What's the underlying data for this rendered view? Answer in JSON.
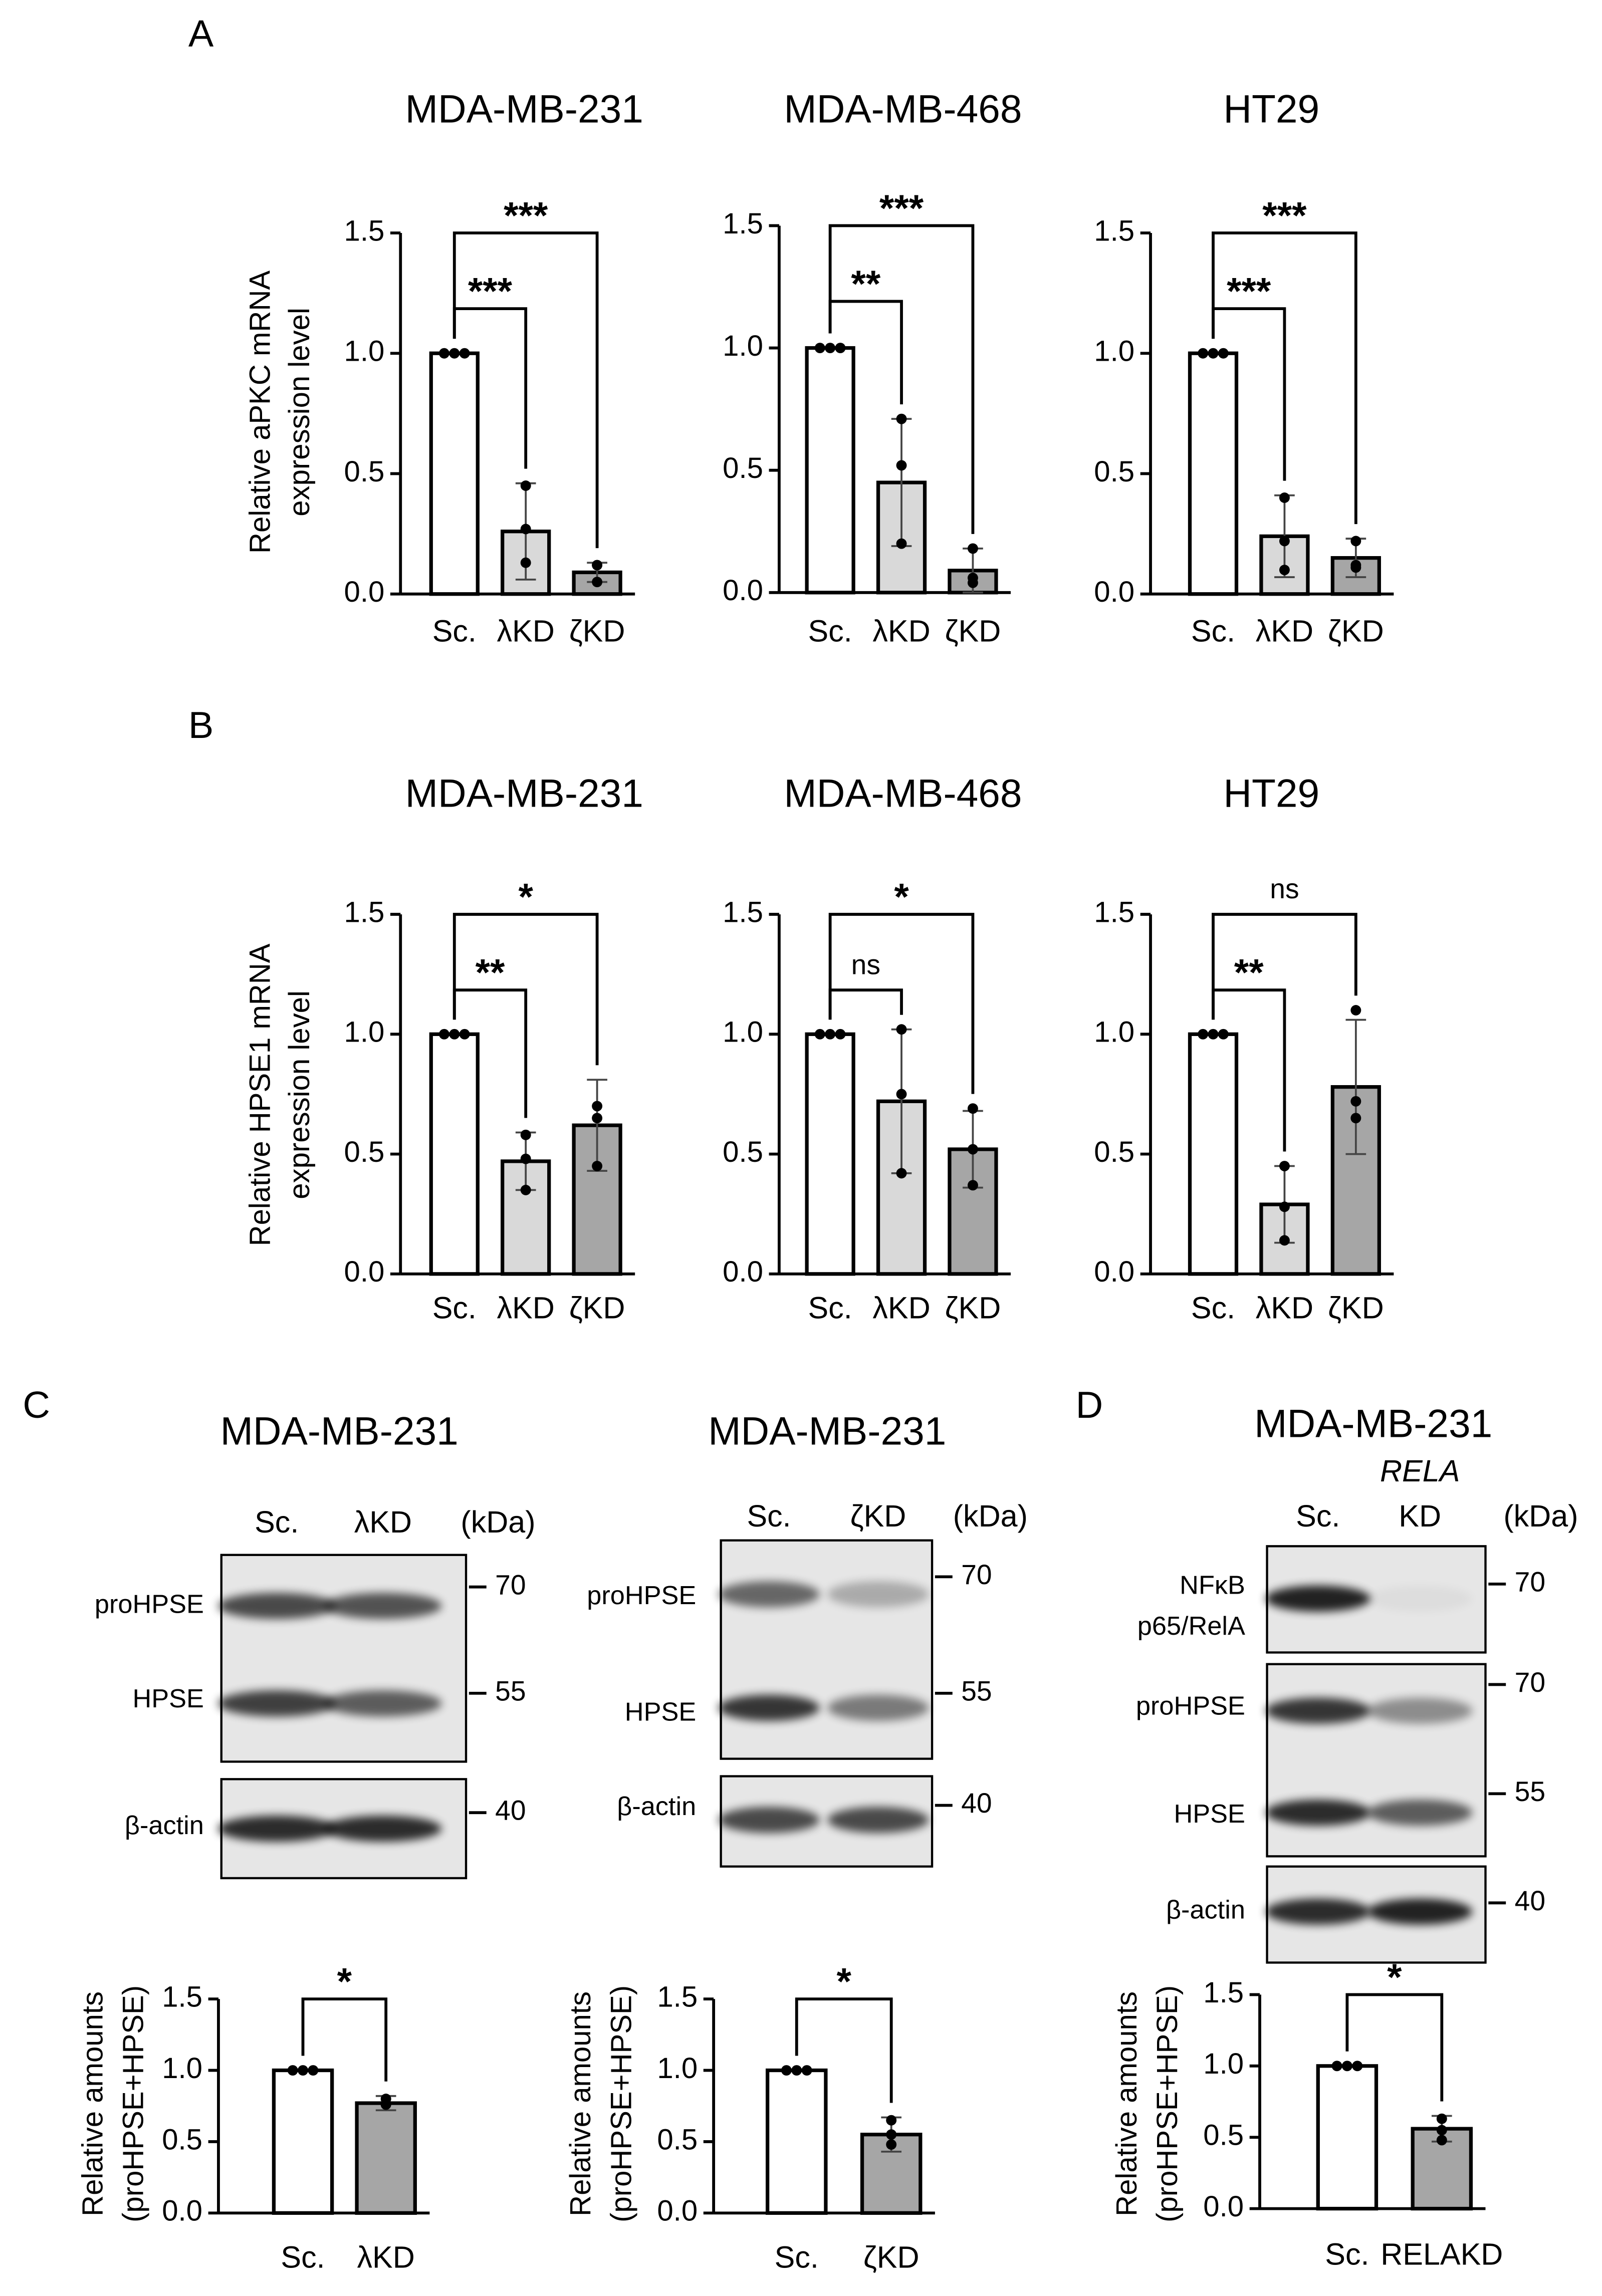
{
  "panels": [
    "A",
    "B",
    "C",
    "D"
  ],
  "chart_data": [
    {
      "type": "bar",
      "title": "MDA-MB-231",
      "y_label": [
        "Relative aPKC mRNA",
        "expression level"
      ],
      "categories": [
        "Sc.",
        "λKD",
        "ζKD"
      ],
      "values": [
        1.0,
        0.26,
        0.09
      ],
      "errors": [
        0,
        0.2,
        0.04
      ],
      "points": [
        [
          1,
          1,
          1
        ],
        [
          0.45,
          0.27,
          0.13
        ],
        [
          0.12,
          0.12,
          0.05
        ]
      ],
      "colors": [
        "#ffffff",
        "#d9d9d9",
        "#a6a6a6"
      ],
      "ylim": [
        0,
        1.5
      ],
      "yticks": [
        {
          "value": 0,
          "label": "0.0"
        },
        {
          "value": 0.5,
          "label": "0.5"
        },
        {
          "value": 1,
          "label": "1.0"
        },
        {
          "value": 1.5,
          "label": "1.5"
        }
      ],
      "brackets": [
        {
          "label": "***",
          "between": [
            0,
            1
          ]
        },
        {
          "label": "***",
          "between": [
            0,
            2
          ]
        }
      ]
    },
    {
      "type": "bar",
      "title": "MDA-MB-468",
      "categories": [
        "Sc.",
        "λKD",
        "ζKD"
      ],
      "values": [
        1.0,
        0.45,
        0.09
      ],
      "errors": [
        0,
        0.26,
        0.09
      ],
      "points": [
        [
          1,
          1,
          1
        ],
        [
          0.71,
          0.52,
          0.2
        ],
        [
          0.18,
          0.06,
          0.04
        ]
      ],
      "colors": [
        "#ffffff",
        "#d9d9d9",
        "#a6a6a6"
      ],
      "ylim": [
        0,
        1.5
      ],
      "yticks": [
        {
          "value": 0,
          "label": "0.0"
        },
        {
          "value": 0.5,
          "label": "0.5"
        },
        {
          "value": 1,
          "label": "1.0"
        },
        {
          "value": 1.5,
          "label": "1.5"
        }
      ],
      "brackets": [
        {
          "label": "**",
          "between": [
            0,
            1
          ]
        },
        {
          "label": "***",
          "between": [
            0,
            2
          ]
        }
      ]
    },
    {
      "type": "bar",
      "title": "HT29",
      "categories": [
        "Sc.",
        "λKD",
        "ζKD"
      ],
      "values": [
        1.0,
        0.24,
        0.15
      ],
      "errors": [
        0,
        0.17,
        0.08
      ],
      "points": [
        [
          1,
          1,
          1
        ],
        [
          0.4,
          0.22,
          0.1
        ],
        [
          0.22,
          0.12,
          0.11
        ]
      ],
      "colors": [
        "#ffffff",
        "#d9d9d9",
        "#a6a6a6"
      ],
      "ylim": [
        0,
        1.5
      ],
      "yticks": [
        {
          "value": 0,
          "label": "0.0"
        },
        {
          "value": 0.5,
          "label": "0.5"
        },
        {
          "value": 1,
          "label": "1.0"
        },
        {
          "value": 1.5,
          "label": "1.5"
        }
      ],
      "brackets": [
        {
          "label": "***",
          "between": [
            0,
            1
          ]
        },
        {
          "label": "***",
          "between": [
            0,
            2
          ]
        }
      ]
    },
    {
      "type": "bar",
      "title": "MDA-MB-231",
      "y_label": [
        "Relative HPSE1 mRNA",
        "expression level"
      ],
      "categories": [
        "Sc.",
        "λKD",
        "ζKD"
      ],
      "values": [
        1.0,
        0.47,
        0.62
      ],
      "errors": [
        0,
        0.12,
        0.19
      ],
      "points": [
        [
          1,
          1,
          1
        ],
        [
          0.58,
          0.48,
          0.35
        ],
        [
          0.7,
          0.65,
          0.45
        ]
      ],
      "colors": [
        "#ffffff",
        "#d9d9d9",
        "#a6a6a6"
      ],
      "ylim": [
        0,
        1.5
      ],
      "yticks": [
        {
          "value": 0,
          "label": "0.0"
        },
        {
          "value": 0.5,
          "label": "0.5"
        },
        {
          "value": 1,
          "label": "1.0"
        },
        {
          "value": 1.5,
          "label": "1.5"
        }
      ],
      "brackets": [
        {
          "label": "**",
          "between": [
            0,
            1
          ]
        },
        {
          "label": "*",
          "between": [
            0,
            2
          ]
        }
      ]
    },
    {
      "type": "bar",
      "title": "MDA-MB-468",
      "categories": [
        "Sc.",
        "λKD",
        "ζKD"
      ],
      "values": [
        1.0,
        0.72,
        0.52
      ],
      "errors": [
        0,
        0.3,
        0.16
      ],
      "points": [
        [
          1,
          1,
          1
        ],
        [
          1.02,
          0.75,
          0.42
        ],
        [
          0.69,
          0.52,
          0.37
        ]
      ],
      "colors": [
        "#ffffff",
        "#d9d9d9",
        "#a6a6a6"
      ],
      "ylim": [
        0,
        1.5
      ],
      "yticks": [
        {
          "value": 0,
          "label": "0.0"
        },
        {
          "value": 0.5,
          "label": "0.5"
        },
        {
          "value": 1,
          "label": "1.0"
        },
        {
          "value": 1.5,
          "label": "1.5"
        }
      ],
      "brackets": [
        {
          "label": "ns",
          "between": [
            0,
            1
          ]
        },
        {
          "label": "*",
          "between": [
            0,
            2
          ]
        }
      ]
    },
    {
      "type": "bar",
      "title": "HT29",
      "categories": [
        "Sc.",
        "λKD",
        "ζKD"
      ],
      "values": [
        1.0,
        0.29,
        0.78
      ],
      "errors": [
        0,
        0.16,
        0.28
      ],
      "points": [
        [
          1,
          1,
          1
        ],
        [
          0.45,
          0.28,
          0.14
        ],
        [
          1.1,
          0.72,
          0.65
        ]
      ],
      "colors": [
        "#ffffff",
        "#d9d9d9",
        "#a6a6a6"
      ],
      "ylim": [
        0,
        1.5
      ],
      "yticks": [
        {
          "value": 0,
          "label": "0.0"
        },
        {
          "value": 0.5,
          "label": "0.5"
        },
        {
          "value": 1,
          "label": "1.0"
        },
        {
          "value": 1.5,
          "label": "1.5"
        }
      ],
      "brackets": [
        {
          "label": "**",
          "between": [
            0,
            1
          ]
        },
        {
          "label": "ns",
          "between": [
            0,
            2
          ]
        }
      ]
    },
    {
      "type": "bar",
      "y_label": [
        "Relative amounts",
        "(proHPSE+HPSE)"
      ],
      "categories": [
        "Sc.",
        "λKD"
      ],
      "values": [
        1.0,
        0.77
      ],
      "errors": [
        0,
        0.05
      ],
      "points": [
        [
          1,
          1,
          1
        ],
        [
          0.8,
          0.76,
          0.76
        ]
      ],
      "colors": [
        "#ffffff",
        "#a6a6a6"
      ],
      "ylim": [
        0,
        1.5
      ],
      "yticks": [
        {
          "value": 0,
          "label": "0.0"
        },
        {
          "value": 0.5,
          "label": "0.5"
        },
        {
          "value": 1,
          "label": "1.0"
        },
        {
          "value": 1.5,
          "label": "1.5"
        }
      ],
      "brackets": [
        {
          "label": "*",
          "between": [
            0,
            1
          ]
        }
      ]
    },
    {
      "type": "bar",
      "y_label": [
        "Relative amounts",
        "(proHPSE+HPSE)"
      ],
      "categories": [
        "Sc.",
        "ζKD"
      ],
      "values": [
        1.0,
        0.55
      ],
      "errors": [
        0,
        0.12
      ],
      "points": [
        [
          1,
          1,
          1
        ],
        [
          0.65,
          0.55,
          0.48
        ]
      ],
      "colors": [
        "#ffffff",
        "#a6a6a6"
      ],
      "ylim": [
        0,
        1.5
      ],
      "yticks": [
        {
          "value": 0,
          "label": "0.0"
        },
        {
          "value": 0.5,
          "label": "0.5"
        },
        {
          "value": 1,
          "label": "1.0"
        },
        {
          "value": 1.5,
          "label": "1.5"
        }
      ],
      "brackets": [
        {
          "label": "*",
          "between": [
            0,
            1
          ]
        }
      ]
    },
    {
      "type": "bar",
      "y_label": [
        "Relative amounts",
        "(proHPSE+HPSE)"
      ],
      "categories": [
        "Sc.",
        "RELAKD"
      ],
      "values": [
        1.0,
        0.56
      ],
      "errors": [
        0,
        0.09
      ],
      "points": [
        [
          1,
          1,
          1
        ],
        [
          0.63,
          0.55,
          0.48
        ]
      ],
      "colors": [
        "#ffffff",
        "#a6a6a6"
      ],
      "ylim": [
        0,
        1.5
      ],
      "yticks": [
        {
          "value": 0,
          "label": "0.0"
        },
        {
          "value": 0.5,
          "label": "0.5"
        },
        {
          "value": 1,
          "label": "1.0"
        },
        {
          "value": 1.5,
          "label": "1.5"
        }
      ],
      "brackets": [
        {
          "label": "*",
          "between": [
            0,
            1
          ]
        }
      ]
    }
  ],
  "blots": [
    {
      "title": "MDA-MB-231",
      "lanes": [
        "Sc.",
        "λKD"
      ],
      "unit": "(kDa)",
      "rows": [
        [
          "proHPSE"
        ],
        [
          "HPSE"
        ],
        [
          "β-actin"
        ]
      ],
      "markers": [
        70,
        55,
        40
      ]
    },
    {
      "title": "MDA-MB-231",
      "lanes": [
        "Sc.",
        "ζKD"
      ],
      "unit": "(kDa)",
      "rows": [
        [
          "proHPSE"
        ],
        [
          "HPSE"
        ],
        [
          "β-actin"
        ]
      ],
      "markers": [
        70,
        55,
        40
      ]
    },
    {
      "title": "MDA-MB-231",
      "lanes": [
        "Sc.",
        "KD"
      ],
      "lane_gene": "RELA",
      "unit": "(kDa)",
      "rows": [
        [
          "NFκB",
          "p65/RelA"
        ],
        [
          "proHPSE"
        ],
        [
          "HPSE"
        ],
        [
          "β-actin"
        ]
      ],
      "markers": [
        70,
        70,
        55,
        40
      ]
    }
  ]
}
